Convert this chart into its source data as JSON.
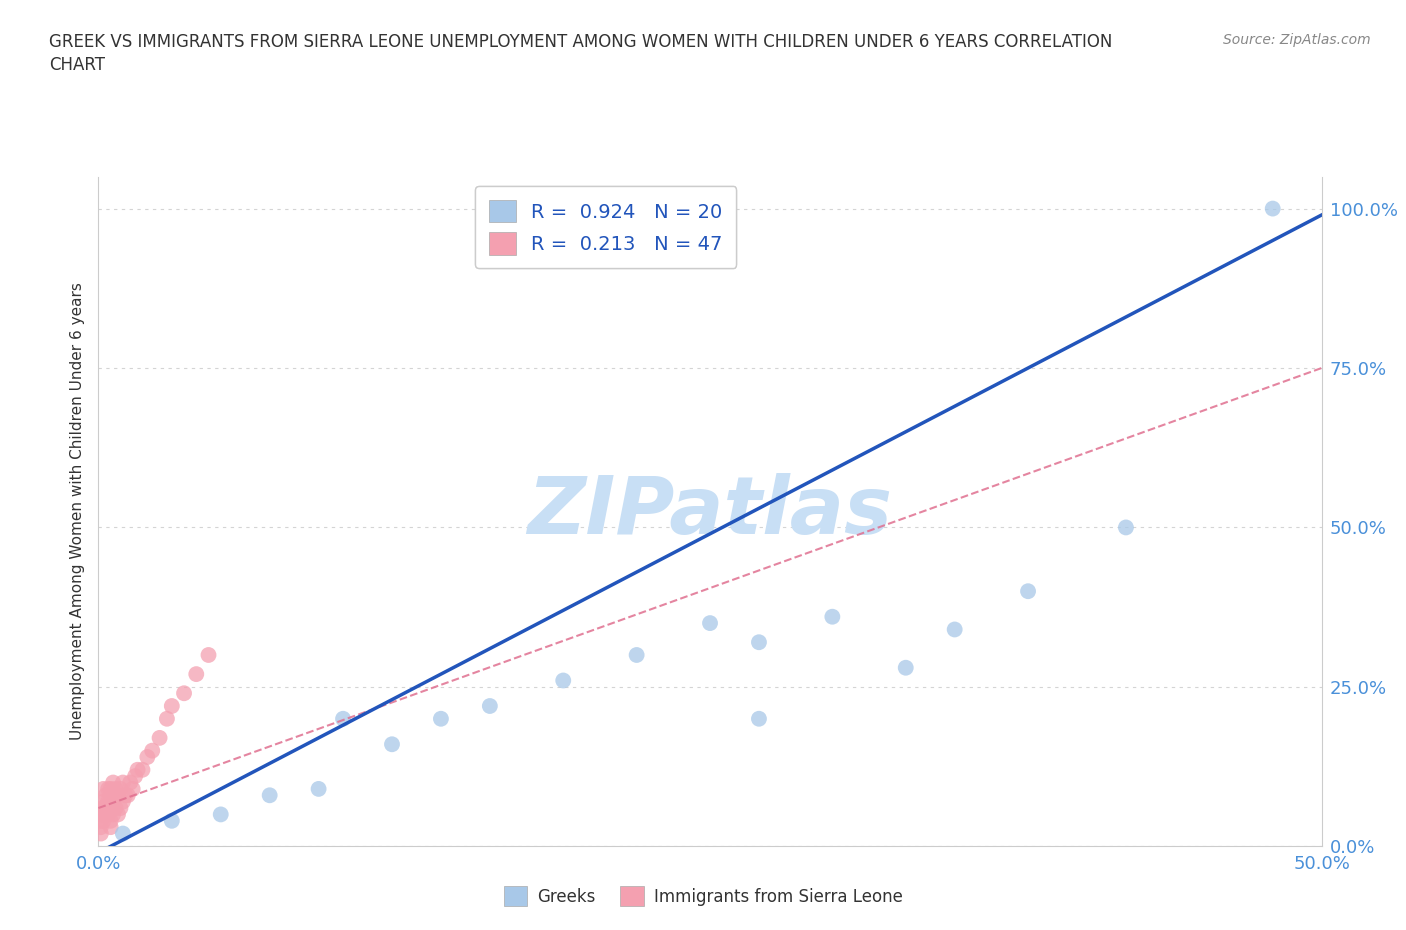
{
  "title_line1": "GREEK VS IMMIGRANTS FROM SIERRA LEONE UNEMPLOYMENT AMONG WOMEN WITH CHILDREN UNDER 6 YEARS CORRELATION",
  "title_line2": "CHART",
  "source": "Source: ZipAtlas.com",
  "tick_color": "#4a90d9",
  "ylabel": "Unemployment Among Women with Children Under 6 years",
  "xlim": [
    0.0,
    0.5
  ],
  "ylim": [
    0.0,
    1.05
  ],
  "xticks": [
    0.0,
    0.125,
    0.25,
    0.375,
    0.5
  ],
  "xtick_labels": [
    "0.0%",
    "",
    "",
    "",
    "50.0%"
  ],
  "ytick_labels": [
    "0.0%",
    "25.0%",
    "50.0%",
    "75.0%",
    "100.0%"
  ],
  "yticks": [
    0.0,
    0.25,
    0.5,
    0.75,
    1.0
  ],
  "greek_color": "#a8c8e8",
  "sierra_leone_color": "#f4a0b0",
  "greek_line_color": "#2255bb",
  "sierra_leone_line_color": "#e07090",
  "watermark": "ZIPatlas",
  "watermark_color": "#c8dff5",
  "legend_r_greek": "0.924",
  "legend_n_greek": "20",
  "legend_r_sierra": "0.213",
  "legend_n_sierra": "47",
  "greek_x": [
    0.01,
    0.03,
    0.05,
    0.07,
    0.09,
    0.1,
    0.12,
    0.14,
    0.16,
    0.19,
    0.22,
    0.25,
    0.27,
    0.27,
    0.3,
    0.33,
    0.35,
    0.38,
    0.42,
    0.48
  ],
  "greek_y": [
    0.02,
    0.04,
    0.05,
    0.08,
    0.09,
    0.2,
    0.16,
    0.2,
    0.22,
    0.26,
    0.3,
    0.35,
    0.2,
    0.32,
    0.36,
    0.28,
    0.34,
    0.4,
    0.5,
    1.0
  ],
  "sierra_x": [
    0.001,
    0.001,
    0.001,
    0.001,
    0.001,
    0.002,
    0.002,
    0.002,
    0.002,
    0.002,
    0.003,
    0.003,
    0.003,
    0.004,
    0.004,
    0.004,
    0.005,
    0.005,
    0.005,
    0.005,
    0.005,
    0.006,
    0.006,
    0.006,
    0.007,
    0.007,
    0.008,
    0.008,
    0.009,
    0.009,
    0.01,
    0.01,
    0.011,
    0.012,
    0.013,
    0.014,
    0.015,
    0.016,
    0.018,
    0.02,
    0.022,
    0.025,
    0.028,
    0.03,
    0.035,
    0.04,
    0.045
  ],
  "sierra_y": [
    0.02,
    0.03,
    0.04,
    0.05,
    0.06,
    0.04,
    0.05,
    0.06,
    0.07,
    0.09,
    0.05,
    0.06,
    0.08,
    0.05,
    0.07,
    0.09,
    0.03,
    0.04,
    0.06,
    0.07,
    0.09,
    0.05,
    0.07,
    0.1,
    0.06,
    0.09,
    0.05,
    0.08,
    0.06,
    0.09,
    0.07,
    0.1,
    0.08,
    0.08,
    0.1,
    0.09,
    0.11,
    0.12,
    0.12,
    0.14,
    0.15,
    0.17,
    0.2,
    0.22,
    0.24,
    0.27,
    0.3
  ],
  "background_color": "#ffffff",
  "grid_color": "#d0d0d0"
}
